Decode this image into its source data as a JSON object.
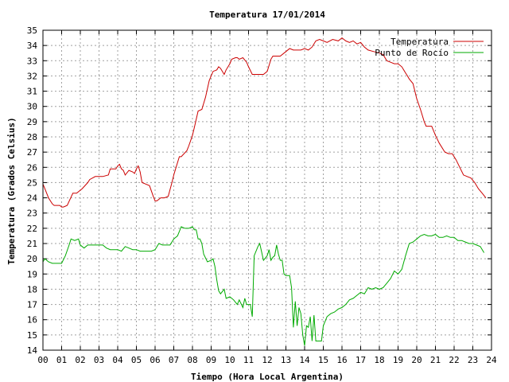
{
  "chart_data": {
    "type": "line",
    "title": "Temperatura 17/01/2014",
    "xlabel": "Tiempo (Hora Local Argentina)",
    "ylabel": "Temperatura (Grados Celsius)",
    "xlim": [
      0,
      24
    ],
    "ylim": [
      14,
      35
    ],
    "x_ticks": [
      "00",
      "01",
      "02",
      "03",
      "04",
      "05",
      "06",
      "07",
      "08",
      "09",
      "10",
      "11",
      "12",
      "13",
      "14",
      "15",
      "16",
      "17",
      "18",
      "19",
      "20",
      "21",
      "22",
      "23",
      "24"
    ],
    "y_ticks": [
      14,
      15,
      16,
      17,
      18,
      19,
      20,
      21,
      22,
      23,
      24,
      25,
      26,
      27,
      28,
      29,
      30,
      31,
      32,
      33,
      34,
      35
    ],
    "grid": true,
    "legend_position": "top-right",
    "series": [
      {
        "name": "Temperatura",
        "color": "#cc0000",
        "x": [
          0.0,
          0.1,
          0.3,
          0.5,
          0.6,
          0.9,
          1.0,
          1.1,
          1.3,
          1.6,
          1.8,
          1.9,
          2.1,
          2.4,
          2.5,
          2.8,
          3.0,
          3.2,
          3.5,
          3.6,
          3.8,
          3.9,
          4.0,
          4.1,
          4.2,
          4.3,
          4.4,
          4.6,
          4.8,
          4.9,
          5.0,
          5.1,
          5.2,
          5.3,
          5.5,
          5.7,
          5.9,
          6.0,
          6.1,
          6.3,
          6.5,
          6.7,
          6.9,
          7.0,
          7.1,
          7.3,
          7.4,
          7.7,
          7.8,
          8.0,
          8.1,
          8.3,
          8.5,
          8.7,
          8.9,
          9.0,
          9.1,
          9.3,
          9.4,
          9.5,
          9.7,
          9.8,
          10.0,
          10.1,
          10.3,
          10.4,
          10.5,
          10.7,
          10.9,
          11.0,
          11.2,
          11.3,
          11.5,
          11.6,
          11.8,
          12.0,
          12.2,
          12.3,
          12.5,
          12.7,
          13.0,
          13.2,
          13.4,
          13.6,
          13.8,
          14.0,
          14.2,
          14.4,
          14.6,
          14.8,
          15.0,
          15.2,
          15.5,
          15.8,
          16.0,
          16.2,
          16.4,
          16.6,
          16.8,
          17.0,
          17.2,
          17.4,
          17.7,
          18.0,
          18.2,
          18.4,
          18.6,
          18.8,
          19.0,
          19.2,
          19.4,
          19.5,
          19.6,
          19.8,
          20.0,
          20.2,
          20.4,
          20.5,
          20.6,
          20.8,
          21.0,
          21.2,
          21.5,
          21.7,
          21.9,
          22.1,
          22.3,
          22.5,
          22.7,
          22.9,
          23.1,
          23.3,
          23.5,
          23.7
        ],
        "values": [
          24.9,
          24.6,
          24.0,
          23.6,
          23.5,
          23.5,
          23.4,
          23.4,
          23.5,
          24.3,
          24.3,
          24.4,
          24.6,
          25.0,
          25.2,
          25.4,
          25.4,
          25.4,
          25.5,
          25.9,
          25.9,
          25.9,
          26.1,
          26.2,
          25.9,
          25.8,
          25.5,
          25.8,
          25.7,
          25.6,
          25.9,
          26.1,
          25.7,
          25.0,
          24.9,
          24.8,
          24.1,
          23.8,
          23.8,
          24.0,
          24.0,
          24.1,
          25.0,
          25.5,
          25.9,
          26.7,
          26.7,
          27.1,
          27.4,
          28.1,
          28.6,
          29.7,
          29.8,
          30.6,
          31.7,
          32.0,
          32.3,
          32.4,
          32.6,
          32.5,
          32.1,
          32.4,
          32.8,
          33.1,
          33.2,
          33.2,
          33.1,
          33.2,
          32.9,
          32.6,
          32.1,
          32.1,
          32.1,
          32.1,
          32.1,
          32.3,
          33.1,
          33.3,
          33.3,
          33.3,
          33.6,
          33.8,
          33.7,
          33.7,
          33.7,
          33.8,
          33.7,
          33.9,
          34.3,
          34.4,
          34.3,
          34.2,
          34.4,
          34.3,
          34.5,
          34.3,
          34.2,
          34.3,
          34.1,
          34.2,
          33.9,
          33.7,
          33.6,
          33.5,
          33.4,
          33.0,
          32.9,
          32.8,
          32.8,
          32.6,
          32.2,
          32.0,
          31.8,
          31.5,
          30.5,
          29.8,
          29.0,
          28.7,
          28.7,
          28.7,
          28.1,
          27.6,
          27.0,
          26.9,
          26.9,
          26.5,
          26.0,
          25.5,
          25.4,
          25.3,
          25.0,
          24.6,
          24.3,
          24.0
        ]
      },
      {
        "name": "Punto de Rocío",
        "color": "#00aa00",
        "x": [
          0.0,
          0.1,
          0.3,
          0.5,
          0.8,
          1.0,
          1.2,
          1.4,
          1.5,
          1.7,
          1.9,
          2.0,
          2.2,
          2.4,
          2.6,
          2.8,
          3.0,
          3.2,
          3.4,
          3.6,
          3.8,
          4.0,
          4.2,
          4.4,
          4.6,
          4.8,
          5.0,
          5.2,
          5.5,
          5.8,
          6.0,
          6.2,
          6.4,
          6.6,
          6.8,
          7.0,
          7.2,
          7.4,
          7.6,
          7.8,
          8.0,
          8.1,
          8.2,
          8.3,
          8.4,
          8.5,
          8.6,
          8.8,
          9.0,
          9.1,
          9.2,
          9.3,
          9.4,
          9.5,
          9.7,
          9.8,
          10.0,
          10.1,
          10.2,
          10.4,
          10.5,
          10.7,
          10.8,
          10.9,
          11.0,
          11.1,
          11.2,
          11.3,
          11.5,
          11.6,
          11.8,
          12.0,
          12.1,
          12.2,
          12.3,
          12.4,
          12.5,
          12.6,
          12.7,
          12.8,
          12.9,
          13.0,
          13.1,
          13.2,
          13.3,
          13.4,
          13.5,
          13.6,
          13.7,
          13.8,
          13.9,
          14.0,
          14.1,
          14.2,
          14.3,
          14.4,
          14.5,
          14.6,
          14.7,
          14.8,
          14.9,
          15.0,
          15.2,
          15.4,
          15.6,
          15.8,
          16.0,
          16.2,
          16.4,
          16.6,
          16.8,
          17.0,
          17.2,
          17.4,
          17.6,
          17.8,
          18.0,
          18.2,
          18.4,
          18.6,
          18.8,
          19.0,
          19.2,
          19.4,
          19.6,
          19.8,
          20.0,
          20.2,
          20.4,
          20.6,
          20.8,
          21.0,
          21.2,
          21.4,
          21.6,
          21.8,
          22.0,
          22.2,
          22.4,
          22.6,
          22.8,
          23.0,
          23.2,
          23.4,
          23.6
        ],
        "values": [
          19.8,
          20.0,
          19.8,
          19.7,
          19.7,
          19.7,
          20.2,
          20.9,
          21.3,
          21.2,
          21.3,
          20.9,
          20.7,
          20.9,
          20.9,
          20.9,
          20.9,
          20.9,
          20.7,
          20.6,
          20.6,
          20.6,
          20.5,
          20.8,
          20.7,
          20.6,
          20.6,
          20.5,
          20.5,
          20.5,
          20.6,
          21.0,
          20.9,
          20.9,
          20.9,
          21.3,
          21.5,
          22.1,
          22.0,
          22.0,
          22.1,
          21.9,
          21.9,
          21.3,
          21.3,
          21.0,
          20.3,
          19.8,
          19.9,
          20.0,
          19.5,
          18.6,
          17.9,
          17.7,
          18.0,
          17.4,
          17.5,
          17.4,
          17.3,
          17.0,
          17.3,
          16.8,
          17.4,
          17.0,
          17.0,
          17.0,
          16.2,
          20.2,
          20.8,
          21.0,
          19.9,
          20.2,
          20.6,
          19.9,
          20.1,
          20.2,
          20.9,
          20.3,
          19.9,
          19.9,
          19.0,
          18.9,
          18.9,
          18.9,
          18.1,
          15.5,
          17.2,
          15.6,
          16.8,
          16.4,
          15.0,
          14.3,
          15.6,
          15.5,
          16.2,
          14.6,
          16.3,
          14.6,
          14.6,
          14.6,
          14.6,
          15.6,
          16.2,
          16.4,
          16.5,
          16.7,
          16.8,
          17.0,
          17.3,
          17.4,
          17.6,
          17.8,
          17.7,
          18.1,
          18.0,
          18.1,
          18.0,
          18.1,
          18.4,
          18.7,
          19.2,
          19.0,
          19.3,
          20.2,
          21.0,
          21.1,
          21.3,
          21.5,
          21.6,
          21.5,
          21.5,
          21.6,
          21.4,
          21.4,
          21.5,
          21.4,
          21.4,
          21.2,
          21.2,
          21.1,
          21.0,
          21.0,
          20.9,
          20.8,
          20.4
        ]
      }
    ]
  }
}
